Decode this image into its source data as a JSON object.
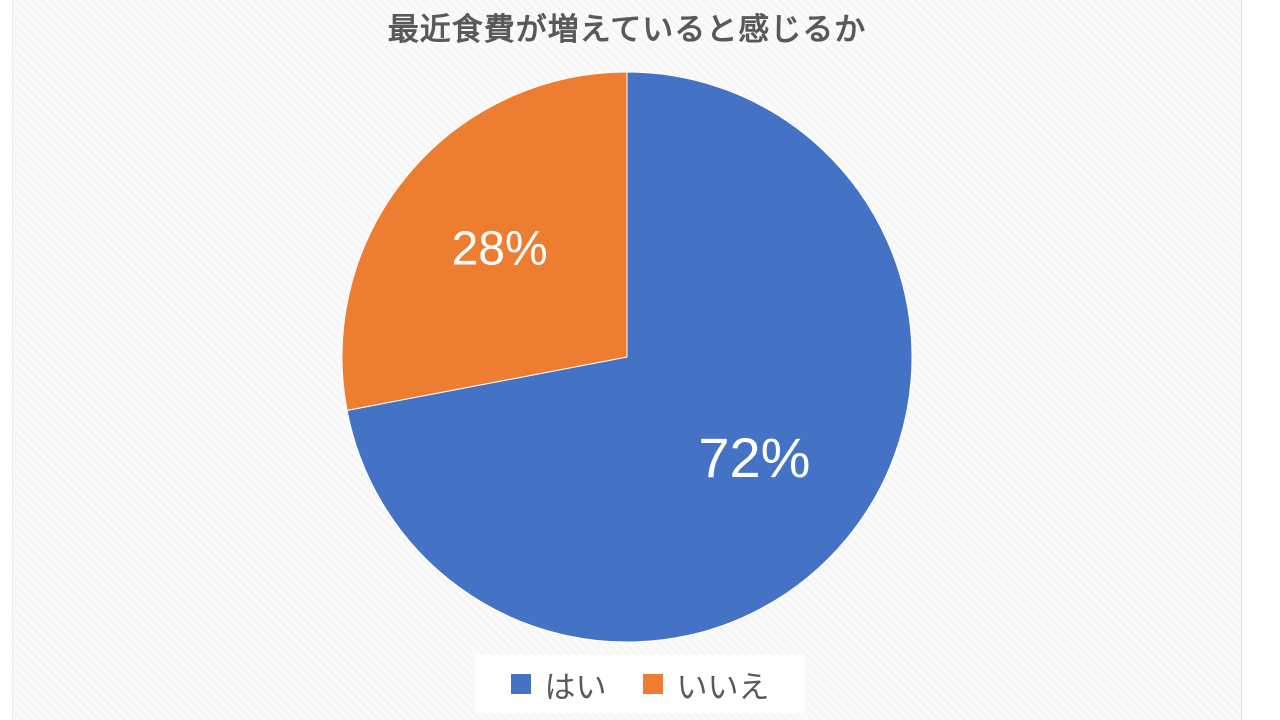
{
  "chart_data": {
    "type": "pie",
    "title": "最近食費が増えていると感じるか",
    "categories": [
      "はい",
      "いいえ"
    ],
    "values": [
      72,
      28
    ],
    "data_labels": [
      "72%",
      "28%"
    ],
    "colors": [
      "#4472c4",
      "#ed7d31"
    ],
    "legend_position": "bottom",
    "start_angle": "12 o'clock",
    "direction": "clockwise"
  },
  "legend": {
    "items": [
      {
        "label": "はい",
        "color": "#4472c4"
      },
      {
        "label": "いいえ",
        "color": "#ed7d31"
      }
    ]
  }
}
